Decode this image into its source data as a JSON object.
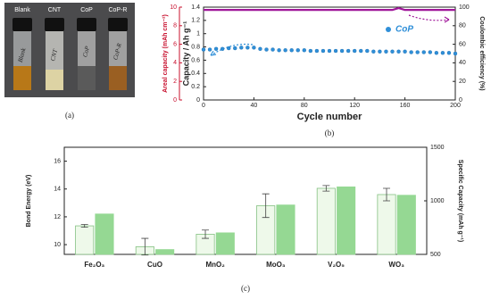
{
  "panel_a": {
    "labels": [
      "Blank",
      "CNT",
      "CoP",
      "CoP-R"
    ],
    "caption": "(a)"
  },
  "chart_data": [
    {
      "type": "line",
      "caption": "(b)",
      "xlabel": "Cycle number",
      "ylabel": "Capacity / Ah g⁻¹",
      "y2label": "Coulombic efficiency (%)",
      "y3label": "Areal capacity (mAh cm⁻²)",
      "y3color": "#c8102e",
      "legend": "upper right",
      "x": [
        0,
        5,
        10,
        15,
        20,
        25,
        30,
        35,
        40,
        45,
        50,
        55,
        60,
        65,
        70,
        75,
        80,
        85,
        90,
        95,
        100,
        105,
        110,
        115,
        120,
        125,
        130,
        135,
        140,
        145,
        150,
        155,
        160,
        165,
        170,
        175,
        180,
        185,
        190,
        195,
        200
      ],
      "xlim": [
        0,
        200
      ],
      "xticks": [
        0,
        40,
        80,
        120,
        160,
        200
      ],
      "ylim": [
        0,
        1.4
      ],
      "yticks": [
        0,
        0.2,
        0.4,
        0.6,
        0.8,
        1.0,
        1.2,
        1.4
      ],
      "y2lim": [
        0,
        100
      ],
      "y2ticks": [
        0,
        20,
        40,
        60,
        80,
        100
      ],
      "y3lim": [
        0,
        10
      ],
      "y3ticks": [
        0,
        2,
        4,
        6,
        8,
        10
      ],
      "series": [
        {
          "name": "CoP",
          "color": "#2f8fd8",
          "marker": "o",
          "values": [
            0.76,
            0.76,
            0.77,
            0.77,
            0.78,
            0.78,
            0.79,
            0.79,
            0.79,
            0.77,
            0.76,
            0.76,
            0.75,
            0.75,
            0.75,
            0.75,
            0.75,
            0.74,
            0.74,
            0.74,
            0.74,
            0.74,
            0.74,
            0.74,
            0.74,
            0.74,
            0.74,
            0.73,
            0.73,
            0.73,
            0.73,
            0.73,
            0.73,
            0.72,
            0.72,
            0.72,
            0.72,
            0.71,
            0.71,
            0.71,
            0.7
          ]
        },
        {
          "color": "#a0179a",
          "marker": "-",
          "axis": "y2",
          "values": [
            97,
            97,
            97,
            97,
            97,
            97,
            97,
            97,
            97,
            97,
            97,
            97,
            97,
            97,
            97,
            97,
            97,
            97,
            97,
            97,
            97,
            97,
            97,
            97,
            97,
            97,
            97,
            97,
            97,
            97,
            97,
            99,
            97,
            97,
            97,
            97,
            97,
            97,
            97,
            97,
            97
          ]
        }
      ]
    },
    {
      "type": "bar",
      "caption": "(c)",
      "ylabel": "Bond Energy (eV)",
      "y2label": "Specific Capacity (mAh g⁻¹)",
      "categories": [
        "Fe₂O₃",
        "CuO",
        "MnO₂",
        "MoO₃",
        "V₂O₅",
        "WO₃"
      ],
      "ylim": [
        9.3,
        17
      ],
      "yticks": [
        10,
        12,
        14,
        16
      ],
      "y2lim": [
        500,
        1500
      ],
      "y2ticks": [
        500,
        1000,
        1500
      ],
      "series": [
        {
          "color": "#eef9ea",
          "edge": "#86c184",
          "values": [
            11.35,
            9.85,
            10.75,
            12.8,
            14.05,
            13.6
          ],
          "errors": [
            0.1,
            0.6,
            0.3,
            0.85,
            0.2,
            0.45
          ]
        },
        {
          "color": "#95d893",
          "edge": "#95d893",
          "axis": "y2",
          "values": [
            877,
            545,
            701,
            961,
            1130,
            1052
          ]
        }
      ]
    }
  ]
}
